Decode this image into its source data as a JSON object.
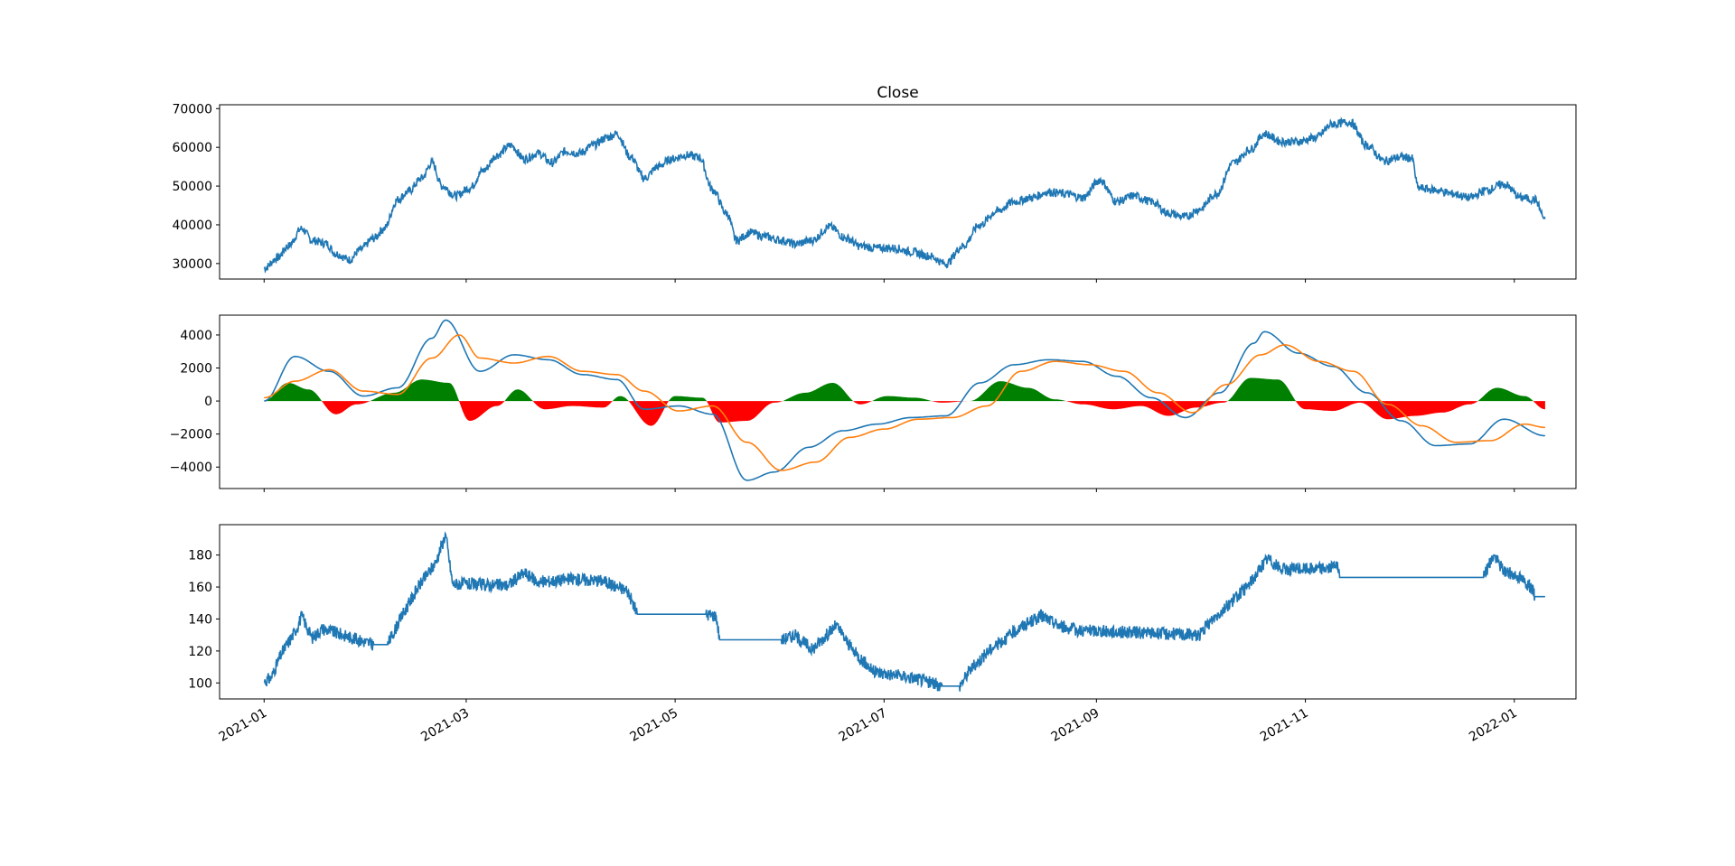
{
  "colors": {
    "line_primary": "#1f77b4",
    "line_signal": "#ff7f0e",
    "hist_positive": "#008000",
    "hist_negative": "#ff0000"
  },
  "chart_data": [
    {
      "type": "line",
      "title": "Close",
      "xlim": [
        "2020-12-19",
        "2022-01-19"
      ],
      "ylim": [
        26000,
        71000
      ],
      "yticks": [
        30000,
        40000,
        50000,
        60000,
        70000
      ],
      "xticks": [
        "2021-01",
        "2021-03",
        "2021-05",
        "2021-07",
        "2021-09",
        "2021-11",
        "2022-01"
      ],
      "grid": false,
      "series": [
        {
          "x": [
            "2021-01-01",
            "2021-01-05",
            "2021-01-08",
            "2021-01-12",
            "2021-01-15",
            "2021-01-19",
            "2021-01-22",
            "2021-01-26",
            "2021-01-29",
            "2021-02-02",
            "2021-02-05",
            "2021-02-09",
            "2021-02-12",
            "2021-02-16",
            "2021-02-19",
            "2021-02-22",
            "2021-02-26",
            "2021-03-02",
            "2021-03-06",
            "2021-03-10",
            "2021-03-14",
            "2021-03-18",
            "2021-03-22",
            "2021-03-26",
            "2021-03-30",
            "2021-04-03",
            "2021-04-07",
            "2021-04-11",
            "2021-04-14",
            "2021-04-18",
            "2021-04-22",
            "2021-04-26",
            "2021-04-30",
            "2021-05-04",
            "2021-05-08",
            "2021-05-12",
            "2021-05-16",
            "2021-05-19",
            "2021-05-23",
            "2021-05-27",
            "2021-06-01",
            "2021-06-05",
            "2021-06-10",
            "2021-06-15",
            "2021-06-20",
            "2021-06-24",
            "2021-06-29",
            "2021-07-04",
            "2021-07-09",
            "2021-07-14",
            "2021-07-19",
            "2021-07-24",
            "2021-07-29",
            "2021-08-03",
            "2021-08-08",
            "2021-08-13",
            "2021-08-18",
            "2021-08-23",
            "2021-08-28",
            "2021-09-02",
            "2021-09-07",
            "2021-09-12",
            "2021-09-17",
            "2021-09-22",
            "2021-09-27",
            "2021-10-01",
            "2021-10-06",
            "2021-10-11",
            "2021-10-16",
            "2021-10-20",
            "2021-10-25",
            "2021-10-30",
            "2021-11-04",
            "2021-11-09",
            "2021-11-14",
            "2021-11-19",
            "2021-11-24",
            "2021-11-29",
            "2021-12-02",
            "2021-12-04",
            "2021-12-09",
            "2021-12-14",
            "2021-12-19",
            "2021-12-24",
            "2021-12-29",
            "2022-01-03",
            "2022-01-07",
            "2022-01-10"
          ],
          "y": [
            28800,
            31500,
            34500,
            39000,
            36000,
            35200,
            32500,
            31000,
            33500,
            36500,
            39000,
            46500,
            48500,
            52000,
            56000,
            50000,
            47500,
            49500,
            54000,
            58000,
            60500,
            57000,
            58500,
            56000,
            59000,
            58500,
            60500,
            62500,
            63500,
            57500,
            52000,
            55000,
            57000,
            58000,
            57500,
            49000,
            43000,
            36000,
            38000,
            37000,
            36000,
            35000,
            36000,
            39500,
            36500,
            34500,
            34000,
            34000,
            33000,
            32000,
            30000,
            34500,
            40000,
            43500,
            46000,
            47000,
            48500,
            48000,
            47000,
            51500,
            46000,
            47500,
            46000,
            43000,
            42000,
            44000,
            48000,
            56000,
            59500,
            63500,
            61500,
            61500,
            62500,
            66000,
            66500,
            60500,
            56500,
            57500,
            57200,
            49500,
            49000,
            48000,
            47000,
            49000,
            50500,
            47000,
            46500,
            41500
          ]
        }
      ]
    },
    {
      "type": "area",
      "title": "",
      "xlim": [
        "2020-12-19",
        "2022-01-19"
      ],
      "ylim": [
        -5300,
        5200
      ],
      "yticks": [
        -4000,
        -2000,
        0,
        2000,
        4000
      ],
      "ytick_labels": [
        "−4000",
        "−2000",
        "0",
        "2000",
        "4000"
      ],
      "xticks": [
        "2021-01",
        "2021-03",
        "2021-05",
        "2021-07",
        "2021-09",
        "2021-11",
        "2022-01"
      ],
      "grid": false,
      "series": [
        {
          "x": [
            "2021-01-01",
            "2021-01-10",
            "2021-01-20",
            "2021-01-30",
            "2021-02-09",
            "2021-02-19",
            "2021-02-23",
            "2021-03-05",
            "2021-03-15",
            "2021-03-25",
            "2021-04-04",
            "2021-04-14",
            "2021-04-22",
            "2021-05-02",
            "2021-05-12",
            "2021-05-22",
            "2021-05-30",
            "2021-06-09",
            "2021-06-19",
            "2021-06-29",
            "2021-07-09",
            "2021-07-19",
            "2021-07-29",
            "2021-08-08",
            "2021-08-18",
            "2021-08-28",
            "2021-09-07",
            "2021-09-17",
            "2021-09-27",
            "2021-10-07",
            "2021-10-17",
            "2021-10-20",
            "2021-10-30",
            "2021-11-09",
            "2021-11-19",
            "2021-11-29",
            "2021-12-09",
            "2021-12-19",
            "2021-12-29",
            "2022-01-10"
          ],
          "y": [
            0,
            2700,
            1800,
            300,
            800,
            3800,
            4900,
            1800,
            2800,
            2500,
            1600,
            1300,
            -500,
            -300,
            -800,
            -4800,
            -4300,
            -2800,
            -1800,
            -1400,
            -1000,
            -900,
            1100,
            2200,
            2500,
            2400,
            1500,
            200,
            -1000,
            500,
            3500,
            4200,
            2900,
            2100,
            500,
            -1200,
            -2700,
            -2600,
            -1100,
            -2100
          ]
        },
        {
          "x": [
            "2021-01-01",
            "2021-01-10",
            "2021-01-20",
            "2021-01-30",
            "2021-02-09",
            "2021-02-19",
            "2021-02-27",
            "2021-03-05",
            "2021-03-15",
            "2021-03-25",
            "2021-04-04",
            "2021-04-14",
            "2021-04-22",
            "2021-05-02",
            "2021-05-12",
            "2021-05-22",
            "2021-06-01",
            "2021-06-11",
            "2021-06-21",
            "2021-07-01",
            "2021-07-11",
            "2021-07-21",
            "2021-07-31",
            "2021-08-10",
            "2021-08-20",
            "2021-08-30",
            "2021-09-09",
            "2021-09-19",
            "2021-09-29",
            "2021-10-09",
            "2021-10-19",
            "2021-10-26",
            "2021-11-05",
            "2021-11-15",
            "2021-11-25",
            "2021-12-05",
            "2021-12-15",
            "2021-12-25",
            "2022-01-04",
            "2022-01-10"
          ],
          "y": [
            200,
            1200,
            1900,
            600,
            400,
            2600,
            4000,
            2600,
            2300,
            2700,
            1800,
            1600,
            600,
            -600,
            -300,
            -2500,
            -4200,
            -3700,
            -2200,
            -1700,
            -1100,
            -1000,
            -300,
            1800,
            2400,
            2200,
            1800,
            500,
            -700,
            1000,
            2800,
            3400,
            2400,
            1800,
            -200,
            -1500,
            -2500,
            -2400,
            -1400,
            -1600
          ]
        },
        {
          "x": [
            "2021-01-01",
            "2021-01-08",
            "2021-01-14",
            "2021-01-22",
            "2021-01-28",
            "2021-02-08",
            "2021-02-16",
            "2021-02-24",
            "2021-03-02",
            "2021-03-10",
            "2021-03-16",
            "2021-03-24",
            "2021-04-01",
            "2021-04-10",
            "2021-04-15",
            "2021-04-24",
            "2021-05-01",
            "2021-05-09",
            "2021-05-14",
            "2021-05-22",
            "2021-05-30",
            "2021-06-08",
            "2021-06-16",
            "2021-06-24",
            "2021-07-02",
            "2021-07-10",
            "2021-07-18",
            "2021-07-26",
            "2021-08-04",
            "2021-08-12",
            "2021-08-20",
            "2021-08-28",
            "2021-09-06",
            "2021-09-14",
            "2021-09-22",
            "2021-09-30",
            "2021-10-08",
            "2021-10-16",
            "2021-10-24",
            "2021-11-01",
            "2021-11-09",
            "2021-11-17",
            "2021-11-25",
            "2021-12-03",
            "2021-12-11",
            "2021-12-19",
            "2021-12-27",
            "2022-01-04",
            "2022-01-10"
          ],
          "y": [
            0,
            1100,
            700,
            -800,
            -200,
            500,
            1300,
            1100,
            -1200,
            -300,
            700,
            -500,
            -300,
            -400,
            300,
            -1500,
            300,
            200,
            -1300,
            -1200,
            -100,
            500,
            1100,
            -200,
            300,
            200,
            -100,
            0,
            1200,
            800,
            100,
            -200,
            -500,
            -300,
            -900,
            -400,
            -100,
            1400,
            1300,
            -500,
            -600,
            -100,
            -1100,
            -900,
            -700,
            -200,
            800,
            300,
            -500
          ]
        }
      ]
    },
    {
      "type": "line",
      "title": "",
      "xlim": [
        "2020-12-19",
        "2022-01-19"
      ],
      "ylim": [
        90,
        199
      ],
      "yticks": [
        100,
        120,
        140,
        160,
        180
      ],
      "xticks": [
        "2021-01",
        "2021-03",
        "2021-05",
        "2021-07",
        "2021-09",
        "2021-11",
        "2022-01"
      ],
      "grid": false,
      "series": [
        {
          "x": [
            "2021-01-01",
            "2021-01-03",
            "2021-01-06",
            "2021-01-10",
            "2021-01-12",
            "2021-01-15",
            "2021-01-18",
            "2021-02-02",
            "2021-02-06",
            "2021-02-10",
            "2021-02-15",
            "2021-02-20",
            "2021-02-23",
            "2021-02-25",
            "2021-03-13",
            "2021-03-18",
            "2021-03-22",
            "2021-04-01",
            "2021-04-10",
            "2021-04-14",
            "2021-04-17",
            "2021-04-20",
            "2021-05-10",
            "2021-05-13",
            "2021-05-14",
            "2021-06-01",
            "2021-06-05",
            "2021-06-10",
            "2021-06-17",
            "2021-06-22",
            "2021-06-28",
            "2021-07-01",
            "2021-07-10",
            "2021-07-18",
            "2021-07-23",
            "2021-07-26",
            "2021-08-01",
            "2021-08-10",
            "2021-08-16",
            "2021-08-21",
            "2021-08-26",
            "2021-10-01",
            "2021-10-05",
            "2021-10-15",
            "2021-10-21",
            "2021-10-25",
            "2021-11-09",
            "2021-11-10",
            "2021-11-11",
            "2021-12-23",
            "2021-12-26",
            "2021-12-29",
            "2022-01-02",
            "2022-01-06",
            "2022-01-07",
            "2022-01-10"
          ],
          "y": [
            101,
            103,
            118,
            132,
            142,
            128,
            134,
            124,
            124,
            141,
            160,
            175,
            193,
            162,
            161,
            169,
            163,
            165,
            164,
            160,
            158,
            143,
            143,
            142,
            127,
            127,
            130,
            121,
            136,
            120,
            107,
            106,
            103,
            98,
            98,
            108,
            121,
            135,
            142,
            136,
            133,
            130,
            140,
            160,
            178,
            171,
            172,
            176,
            166,
            166,
            180,
            170,
            167,
            160,
            154,
            154
          ]
        }
      ]
    }
  ]
}
